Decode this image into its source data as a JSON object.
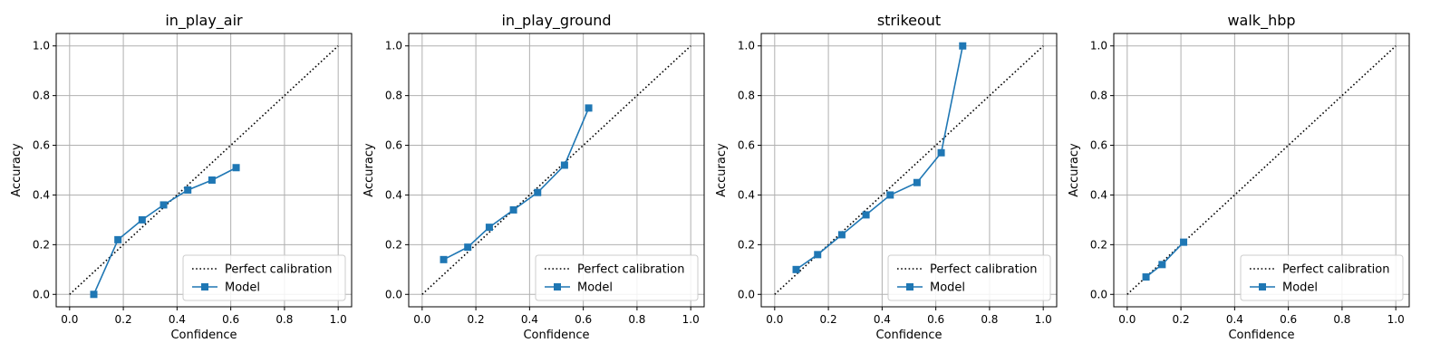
{
  "chart_data": [
    {
      "type": "line",
      "title": "in_play_air",
      "xlabel": "Confidence",
      "ylabel": "Accuracy",
      "xlim": [
        -0.05,
        1.05
      ],
      "ylim": [
        -0.05,
        1.05
      ],
      "xticks": [
        "0.0",
        "0.2",
        "0.4",
        "0.6",
        "0.8",
        "1.0"
      ],
      "yticks": [
        "0.0",
        "0.2",
        "0.4",
        "0.6",
        "0.8",
        "1.0"
      ],
      "grid": true,
      "legend": "lower-right",
      "series": [
        {
          "name": "Perfect calibration",
          "style": "dotted",
          "color": "#000000",
          "x": [
            0,
            1
          ],
          "y": [
            0,
            1
          ]
        },
        {
          "name": "Model",
          "style": "line-square",
          "color": "#1f77b4",
          "x": [
            0.09,
            0.18,
            0.27,
            0.35,
            0.44,
            0.53,
            0.62
          ],
          "y": [
            0.0,
            0.22,
            0.3,
            0.36,
            0.42,
            0.46,
            0.51
          ]
        }
      ]
    },
    {
      "type": "line",
      "title": "in_play_ground",
      "xlabel": "Confidence",
      "ylabel": "Accuracy",
      "xlim": [
        -0.05,
        1.05
      ],
      "ylim": [
        -0.05,
        1.05
      ],
      "xticks": [
        "0.0",
        "0.2",
        "0.4",
        "0.6",
        "0.8",
        "1.0"
      ],
      "yticks": [
        "0.0",
        "0.2",
        "0.4",
        "0.6",
        "0.8",
        "1.0"
      ],
      "grid": true,
      "legend": "lower-right",
      "series": [
        {
          "name": "Perfect calibration",
          "style": "dotted",
          "color": "#000000",
          "x": [
            0,
            1
          ],
          "y": [
            0,
            1
          ]
        },
        {
          "name": "Model",
          "style": "line-square",
          "color": "#1f77b4",
          "x": [
            0.08,
            0.17,
            0.25,
            0.34,
            0.43,
            0.53,
            0.62
          ],
          "y": [
            0.14,
            0.19,
            0.27,
            0.34,
            0.41,
            0.52,
            0.75
          ]
        }
      ]
    },
    {
      "type": "line",
      "title": "strikeout",
      "xlabel": "Confidence",
      "ylabel": "Accuracy",
      "xlim": [
        -0.05,
        1.05
      ],
      "ylim": [
        -0.05,
        1.05
      ],
      "xticks": [
        "0.0",
        "0.2",
        "0.4",
        "0.6",
        "0.8",
        "1.0"
      ],
      "yticks": [
        "0.0",
        "0.2",
        "0.4",
        "0.6",
        "0.8",
        "1.0"
      ],
      "grid": true,
      "legend": "lower-right",
      "series": [
        {
          "name": "Perfect calibration",
          "style": "dotted",
          "color": "#000000",
          "x": [
            0,
            1
          ],
          "y": [
            0,
            1
          ]
        },
        {
          "name": "Model",
          "style": "line-square",
          "color": "#1f77b4",
          "x": [
            0.08,
            0.16,
            0.25,
            0.34,
            0.43,
            0.53,
            0.62,
            0.7
          ],
          "y": [
            0.1,
            0.16,
            0.24,
            0.32,
            0.4,
            0.45,
            0.57,
            1.0
          ]
        }
      ]
    },
    {
      "type": "line",
      "title": "walk_hbp",
      "xlabel": "Confidence",
      "ylabel": "Accuracy",
      "xlim": [
        -0.05,
        1.05
      ],
      "ylim": [
        -0.05,
        1.05
      ],
      "xticks": [
        "0.0",
        "0.2",
        "0.4",
        "0.6",
        "0.8",
        "1.0"
      ],
      "yticks": [
        "0.0",
        "0.2",
        "0.4",
        "0.6",
        "0.8",
        "1.0"
      ],
      "grid": true,
      "legend": "lower-right",
      "series": [
        {
          "name": "Perfect calibration",
          "style": "dotted",
          "color": "#000000",
          "x": [
            0,
            1
          ],
          "y": [
            0,
            1
          ]
        },
        {
          "name": "Model",
          "style": "line-square",
          "color": "#1f77b4",
          "x": [
            0.07,
            0.13,
            0.21
          ],
          "y": [
            0.07,
            0.12,
            0.21
          ]
        }
      ]
    }
  ]
}
